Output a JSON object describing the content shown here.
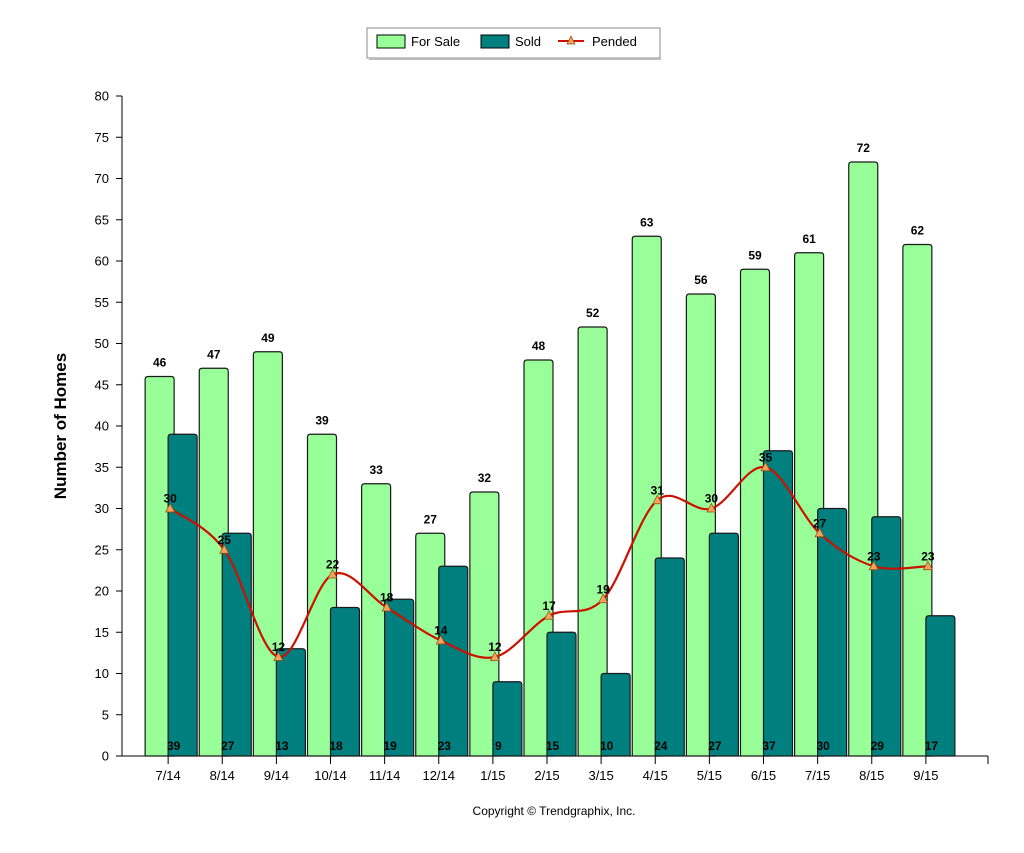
{
  "chart_data": {
    "type": "bar",
    "categories": [
      "7/14",
      "8/14",
      "9/14",
      "10/14",
      "11/14",
      "12/14",
      "1/15",
      "2/15",
      "3/15",
      "4/15",
      "5/15",
      "6/15",
      "7/15",
      "8/15",
      "9/15"
    ],
    "series": [
      {
        "name": "For Sale",
        "type": "bar",
        "color": "#99ff99",
        "values": [
          46,
          47,
          49,
          39,
          33,
          27,
          32,
          48,
          52,
          63,
          56,
          59,
          61,
          72,
          62
        ]
      },
      {
        "name": "Sold",
        "type": "bar",
        "color": "#007f7f",
        "values": [
          39,
          27,
          13,
          18,
          19,
          23,
          9,
          15,
          10,
          24,
          27,
          37,
          30,
          29,
          17
        ]
      },
      {
        "name": "Pended",
        "type": "line",
        "color": "#cc1100",
        "marker_color": "#f6a25a",
        "values": [
          30,
          25,
          12,
          22,
          18,
          14,
          12,
          17,
          19,
          31,
          30,
          35,
          27,
          23,
          23
        ]
      }
    ],
    "title": "",
    "xlabel": "",
    "ylabel": "Number of Homes",
    "ylim": [
      0,
      80
    ],
    "yticks": [
      0,
      5,
      10,
      15,
      20,
      25,
      30,
      35,
      40,
      45,
      50,
      55,
      60,
      65,
      70,
      75,
      80
    ],
    "grid": false,
    "legend": "top-center"
  },
  "footer": "Copyright © Trendgraphix, Inc."
}
